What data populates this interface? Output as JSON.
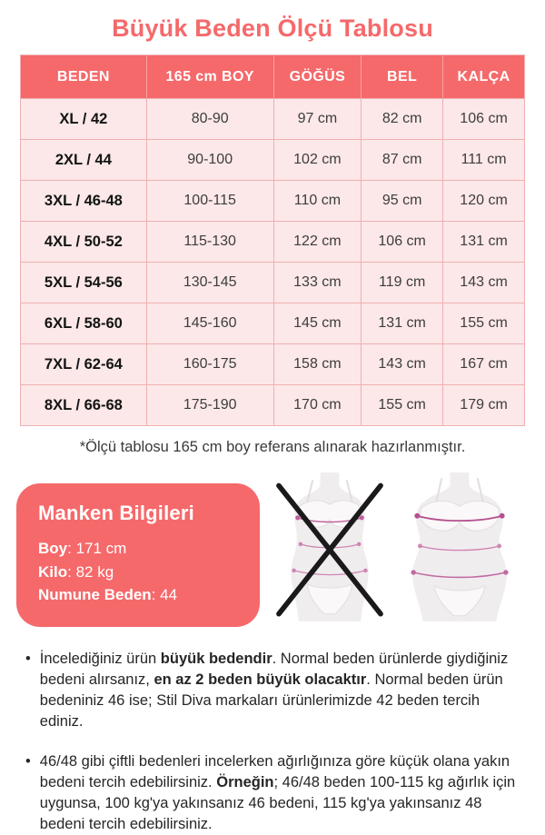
{
  "page": {
    "title": "Büyük Beden Ölçü Tablosu",
    "footnote": "*Ölçü tablosu 165 cm boy referans alınarak hazırlanmıştır.",
    "bullet": "•"
  },
  "size_table": {
    "headers": [
      "BEDEN",
      "165 cm BOY",
      "GÖĞÜS",
      "BEL",
      "KALÇA"
    ],
    "rows": [
      [
        "XL / 42",
        "80-90",
        "97 cm",
        "82 cm",
        "106 cm"
      ],
      [
        "2XL / 44",
        "90-100",
        "102 cm",
        "87 cm",
        "111 cm"
      ],
      [
        "3XL / 46-48",
        "100-115",
        "110 cm",
        "95 cm",
        "120 cm"
      ],
      [
        "4XL / 50-52",
        "115-130",
        "122 cm",
        "106 cm",
        "131 cm"
      ],
      [
        "5XL / 54-56",
        "130-145",
        "133 cm",
        "119 cm",
        "143 cm"
      ],
      [
        "6XL / 58-60",
        "145-160",
        "145 cm",
        "131 cm",
        "155 cm"
      ],
      [
        "7XL / 62-64",
        "160-175",
        "158 cm",
        "143 cm",
        "167 cm"
      ],
      [
        "8XL / 66-68",
        "175-190",
        "170 cm",
        "155 cm",
        "179 cm"
      ]
    ]
  },
  "model_info": {
    "title": "Manken Bilgileri",
    "separator": ": ",
    "fields": [
      {
        "label": "Boy",
        "value": "171 cm"
      },
      {
        "label": "Kilo",
        "value": "82 kg"
      },
      {
        "label": "Numune Beden",
        "value": "44"
      }
    ]
  },
  "figures": {
    "wrong": "slim-body-crossed-out",
    "correct": "plus-size-body-with-measurement-lines"
  },
  "notes": [
    {
      "segments": [
        {
          "text": "İncelediğiniz ürün ",
          "bold": false
        },
        {
          "text": "büyük bedendir",
          "bold": true
        },
        {
          "text": ". Normal beden ürünlerde giydiğiniz bedeni alırsanız, ",
          "bold": false
        },
        {
          "text": "en az 2 beden büyük olacaktır",
          "bold": true
        },
        {
          "text": ". Normal beden ürün bedeniniz 46 ise; Stil Diva markaları ürünlerimizde 42 beden tercih ediniz.",
          "bold": false
        }
      ]
    },
    {
      "segments": [
        {
          "text": "46/48 gibi çiftli bedenleri incelerken ağırlığınıza göre küçük olana yakın bedeni tercih edebilirsiniz. ",
          "bold": false
        },
        {
          "text": "Örneğin",
          "bold": true
        },
        {
          "text": "; 46/48 beden 100-115 kg ağırlık için uygunsa, 100 kg'ya yakınsanız 46 bedeni, 115 kg'ya yakınsanız 48 bedeni tercih edebilirsiniz.",
          "bold": false
        }
      ]
    }
  ],
  "colors": {
    "accent_coral": "#f5696b",
    "row_background": "#fce8e8",
    "row_border": "#efb0b2",
    "measurement_line": "#bf5f99",
    "figure_body": "#f0edef",
    "text_dark": "#262626"
  }
}
